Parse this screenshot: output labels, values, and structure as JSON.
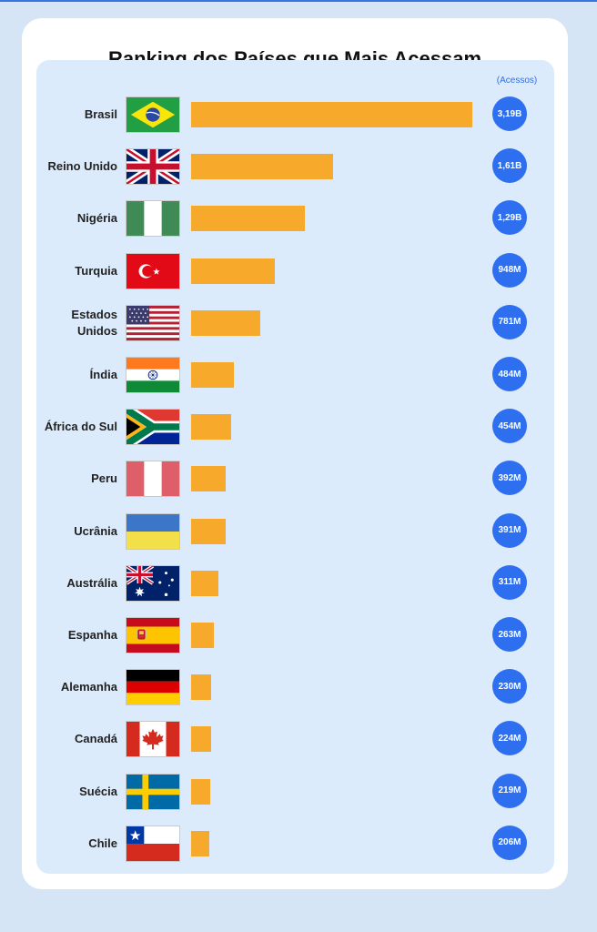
{
  "chart_data": {
    "type": "bar",
    "orientation": "horizontal",
    "title": "Ranking dos Países que Mais Acessam",
    "unit_label": "(Acessos)",
    "categories": [
      "Brasil",
      "Reino Unido",
      "Nigéria",
      "Turquia",
      "Estados Unidos",
      "Índia",
      "África do Sul",
      "Peru",
      "Ucrânia",
      "Austrália",
      "Espanha",
      "Alemanha",
      "Canadá",
      "Suécia",
      "Chile"
    ],
    "values": [
      3190000000,
      1610000000,
      1290000000,
      948000000,
      781000000,
      484000000,
      454000000,
      392000000,
      391000000,
      311000000,
      263000000,
      230000000,
      224000000,
      219000000,
      206000000
    ],
    "labels": [
      "3,19B",
      "1,61B",
      "1,29B",
      "948M",
      "781M",
      "484M",
      "454M",
      "392M",
      "391M",
      "311M",
      "263M",
      "230M",
      "224M",
      "219M",
      "206M"
    ],
    "flags": [
      "brazil-flag-icon",
      "uk-flag-icon",
      "nigeria-flag-icon",
      "turkey-flag-icon",
      "usa-flag-icon",
      "india-flag-icon",
      "south-africa-flag-icon",
      "peru-flag-icon",
      "ukraine-flag-icon",
      "australia-flag-icon",
      "spain-flag-icon",
      "germany-flag-icon",
      "canada-flag-icon",
      "sweden-flag-icon",
      "chile-flag-icon"
    ],
    "colors": {
      "bar": "#f6a92a",
      "badge": "#2e6ff0",
      "panel": "#dcebfc",
      "background": "#d6e5f6"
    },
    "legend": "none",
    "grid": false
  }
}
